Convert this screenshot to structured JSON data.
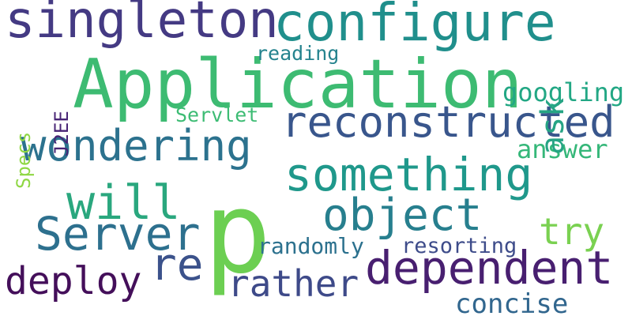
{
  "words": {
    "application": {
      "text": "Application",
      "color": "#3dbb72"
    },
    "p": {
      "text": "p",
      "color": "#6ccf52"
    },
    "singleton": {
      "text": "singleton",
      "color": "#443a83"
    },
    "configure": {
      "text": "configure",
      "color": "#208f8c"
    },
    "reconstructed": {
      "text": "reconstructed",
      "color": "#39568c"
    },
    "wondering": {
      "text": "wondering",
      "color": "#2c728e"
    },
    "something": {
      "text": "something",
      "color": "#1f988b"
    },
    "object": {
      "text": "object",
      "color": "#277f8e"
    },
    "will": {
      "text": "will",
      "color": "#2aa77e"
    },
    "server": {
      "text": "Server",
      "color": "#2d708e"
    },
    "re": {
      "text": "re",
      "color": "#3b528b"
    },
    "dependent": {
      "text": "dependent",
      "color": "#481f70"
    },
    "deploy": {
      "text": "deploy",
      "color": "#440f5a"
    },
    "rather": {
      "text": "rather",
      "color": "#3e4a89"
    },
    "try": {
      "text": "try",
      "color": "#7ad151"
    },
    "concise": {
      "text": "concise",
      "color": "#31668e"
    },
    "answer": {
      "text": "answer",
      "color": "#35b779"
    },
    "googling": {
      "text": "googling",
      "color": "#22a784"
    },
    "randomly": {
      "text": "randomly",
      "color": "#2c718e"
    },
    "resorting": {
      "text": "resorting",
      "color": "#3e4c8a"
    },
    "reading": {
      "text": "reading",
      "color": "#25838e"
    },
    "servlet": {
      "text": "Servlet",
      "color": "#3dbc74"
    },
    "ask": {
      "text": "ask",
      "color": "#26a484"
    },
    "specs": {
      "text": "Specs",
      "color": "#8fd744"
    },
    "j2ee": {
      "text": "J2EE",
      "color": "#482475"
    }
  }
}
